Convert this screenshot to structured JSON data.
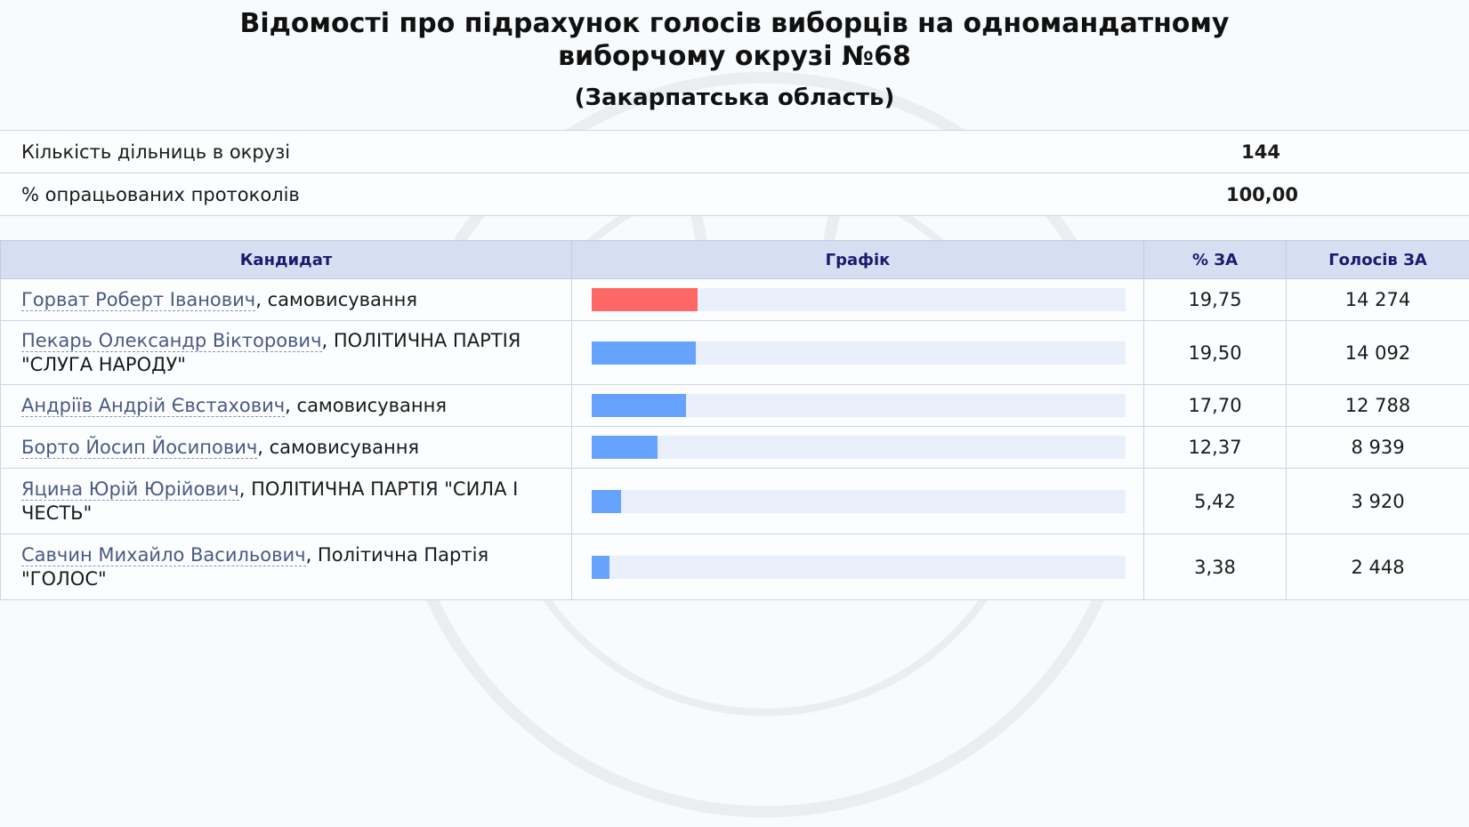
{
  "title_line1": "Відомості про підрахунок голосів виборців на одномандатному",
  "title_line2": "виборчому окрузі №68",
  "region": "(Закарпатська область)",
  "summary": {
    "stations_label": "Кількість дільниць в окрузі",
    "stations_value": "144",
    "processed_label": "% опрацьованих протоколів",
    "processed_value": "100,00"
  },
  "table": {
    "headers": {
      "candidate": "Кандидат",
      "chart": "Графік",
      "percent": "% ЗА",
      "votes": "Голосів ЗА"
    },
    "rows": [
      {
        "name": "Горват Роберт Іванович",
        "affiliation": ", самовисування",
        "percent": "19,75",
        "votes": "14 274",
        "share": 19.75,
        "bar_color": "#ff6666"
      },
      {
        "name": "Пекарь Олександр Вікторович",
        "affiliation": ", ПОЛІТИЧНА ПАРТІЯ \"СЛУГА НАРОДУ\"",
        "percent": "19,50",
        "votes": "14 092",
        "share": 19.5,
        "bar_color": "#66a3ff"
      },
      {
        "name": "Андріїв Андрій Євстахович",
        "affiliation": ", самовисування",
        "percent": "17,70",
        "votes": "12 788",
        "share": 17.7,
        "bar_color": "#66a3ff"
      },
      {
        "name": "Борто Йосип Йосипович",
        "affiliation": ", самовисування",
        "percent": "12,37",
        "votes": "8 939",
        "share": 12.37,
        "bar_color": "#66a3ff"
      },
      {
        "name": "Яцина Юрій Юрійович",
        "affiliation": ", ПОЛІТИЧНА ПАРТІЯ \"СИЛА І ЧЕСТЬ\"",
        "percent": "5,42",
        "votes": "3 920",
        "share": 5.42,
        "bar_color": "#66a3ff"
      },
      {
        "name": "Савчин Михайло Васильович",
        "affiliation": ", Політична Партія \"ГОЛОС\"",
        "percent": "3,38",
        "votes": "2 448",
        "share": 3.38,
        "bar_color": "#66a3ff"
      }
    ]
  },
  "colors": {
    "header_bg": "#d6dff2",
    "header_text": "#1a1a6e",
    "bar_track": "#eaf0fb",
    "leader_bar": "#ff6666",
    "other_bar": "#66a3ff",
    "link": "#4a5a82"
  }
}
